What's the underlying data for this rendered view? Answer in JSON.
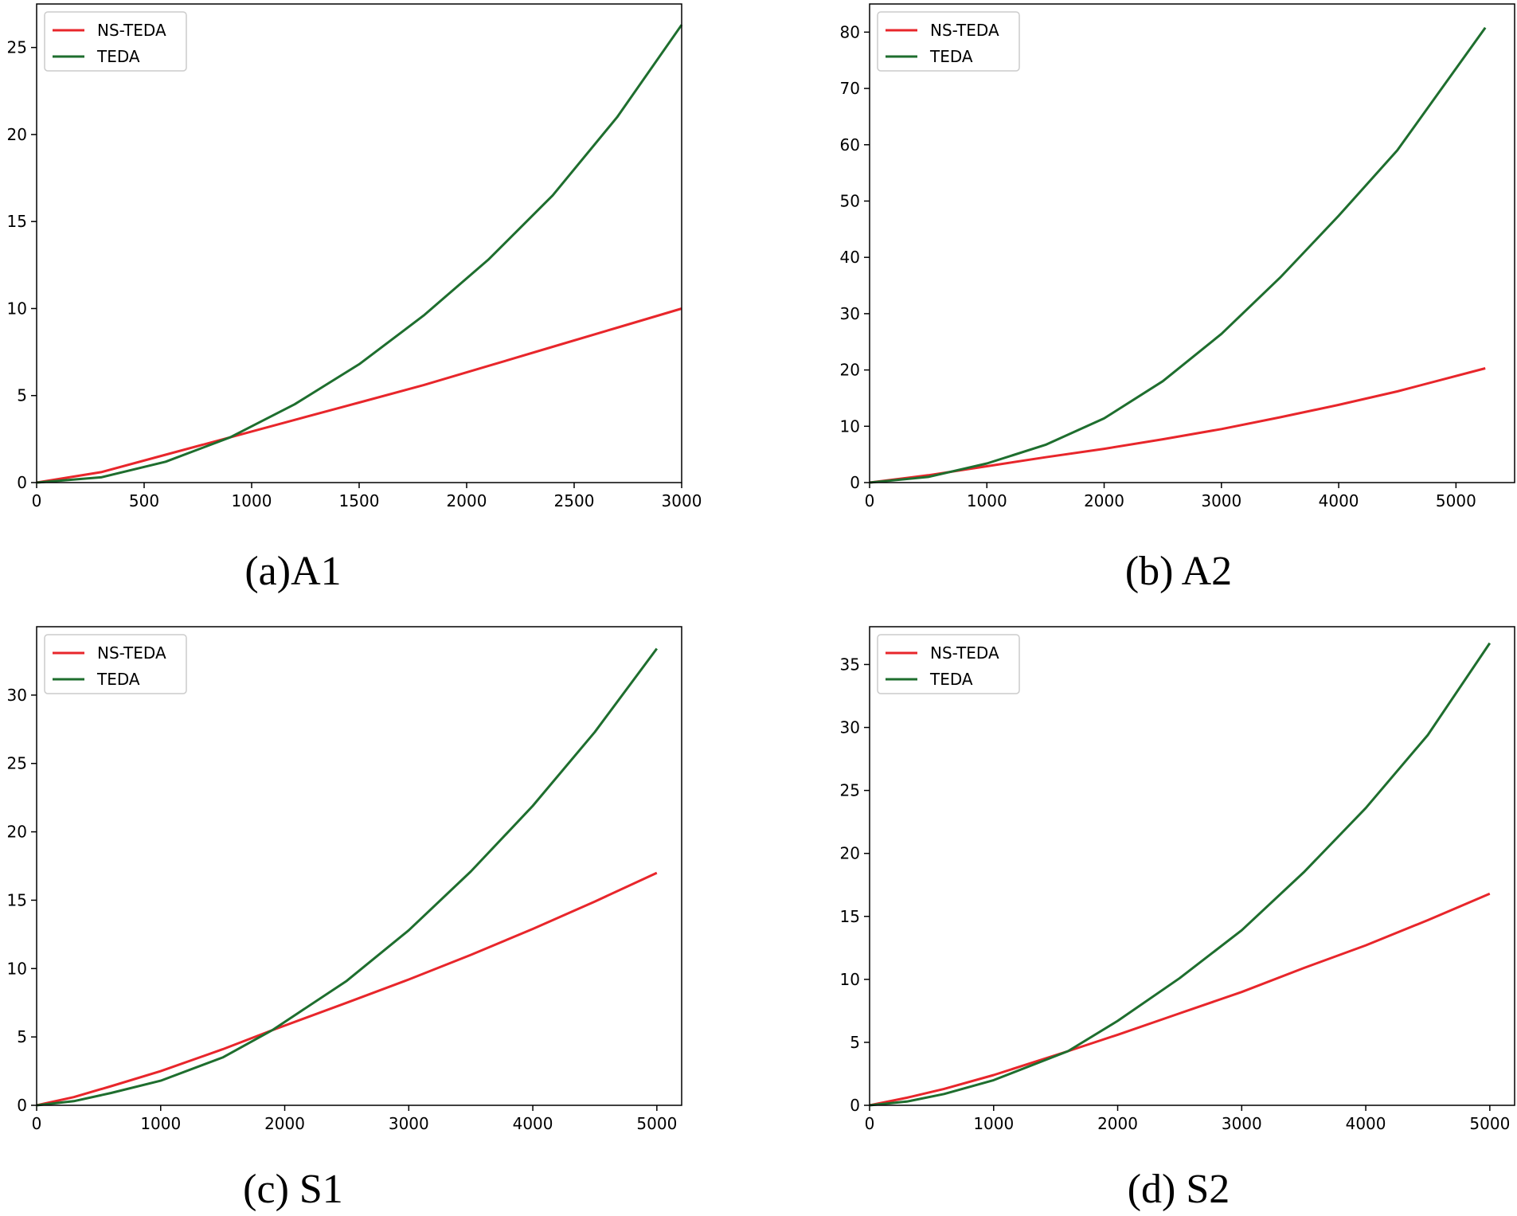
{
  "colors": {
    "ns_teda": "#e8262b",
    "teda": "#1e6e2e"
  },
  "chart_data": [
    {
      "id": "a",
      "type": "line",
      "title": "(a)A1",
      "xlim": [
        0,
        3000
      ],
      "ylim": [
        0,
        27.5
      ],
      "xticks": [
        0,
        500,
        1000,
        1500,
        2000,
        2500,
        3000
      ],
      "yticks": [
        0,
        5,
        10,
        15,
        20,
        25
      ],
      "legend": "top-left",
      "series": [
        {
          "name": "NS-TEDA",
          "x": [
            0,
            300,
            600,
            900,
            1200,
            1500,
            1800,
            2100,
            2400,
            2700,
            3000
          ],
          "y": [
            0,
            0.6,
            1.6,
            2.6,
            3.6,
            4.6,
            5.6,
            6.7,
            7.8,
            8.9,
            10.0
          ]
        },
        {
          "name": "TEDA",
          "x": [
            0,
            300,
            600,
            900,
            1200,
            1500,
            1800,
            2100,
            2400,
            2700,
            3000
          ],
          "y": [
            0,
            0.3,
            1.2,
            2.6,
            4.5,
            6.8,
            9.6,
            12.8,
            16.5,
            21.0,
            26.3
          ]
        }
      ]
    },
    {
      "id": "b",
      "type": "line",
      "title": "(b) A2",
      "xlim": [
        0,
        5500
      ],
      "ylim": [
        0,
        85
      ],
      "xticks": [
        0,
        1000,
        2000,
        3000,
        4000,
        5000
      ],
      "yticks": [
        0,
        10,
        20,
        30,
        40,
        50,
        60,
        70,
        80
      ],
      "legend": "top-left",
      "series": [
        {
          "name": "NS-TEDA",
          "x": [
            0,
            500,
            1000,
            1500,
            2000,
            2500,
            3000,
            3500,
            4000,
            4500,
            5250
          ],
          "y": [
            0,
            1.3,
            2.9,
            4.5,
            6.0,
            7.7,
            9.5,
            11.6,
            13.8,
            16.2,
            20.3
          ]
        },
        {
          "name": "TEDA",
          "x": [
            0,
            500,
            1000,
            1500,
            2000,
            2500,
            3000,
            3500,
            4000,
            4500,
            5250
          ],
          "y": [
            0,
            1.0,
            3.4,
            6.7,
            11.4,
            18.0,
            26.4,
            36.4,
            47.4,
            59.0,
            80.8
          ]
        }
      ]
    },
    {
      "id": "c",
      "type": "line",
      "title": "(c) S1",
      "xlim": [
        0,
        5200
      ],
      "ylim": [
        0,
        35
      ],
      "xticks": [
        0,
        1000,
        2000,
        3000,
        4000,
        5000
      ],
      "yticks": [
        0,
        5,
        10,
        15,
        20,
        25,
        30
      ],
      "legend": "top-left",
      "series": [
        {
          "name": "NS-TEDA",
          "x": [
            0,
            300,
            600,
            1000,
            1500,
            1900,
            2500,
            3000,
            3500,
            4000,
            4500,
            5000
          ],
          "y": [
            0,
            0.6,
            1.4,
            2.5,
            4.1,
            5.5,
            7.5,
            9.2,
            11.0,
            12.9,
            14.9,
            17.0
          ]
        },
        {
          "name": "TEDA",
          "x": [
            0,
            300,
            600,
            1000,
            1500,
            1900,
            2500,
            3000,
            3500,
            4000,
            4500,
            5000
          ],
          "y": [
            0,
            0.3,
            0.9,
            1.8,
            3.5,
            5.5,
            9.1,
            12.8,
            17.1,
            21.9,
            27.3,
            33.4
          ]
        }
      ]
    },
    {
      "id": "d",
      "type": "line",
      "title": "(d) S2",
      "xlim": [
        0,
        5200
      ],
      "ylim": [
        0,
        38
      ],
      "xticks": [
        0,
        1000,
        2000,
        3000,
        4000,
        5000
      ],
      "yticks": [
        0,
        5,
        10,
        15,
        20,
        25,
        30,
        35
      ],
      "legend": "top-left",
      "series": [
        {
          "name": "NS-TEDA",
          "x": [
            0,
            300,
            600,
            1000,
            1600,
            2000,
            2500,
            3000,
            3500,
            4000,
            4500,
            5000
          ],
          "y": [
            0,
            0.6,
            1.3,
            2.4,
            4.3,
            5.6,
            7.3,
            9.0,
            10.9,
            12.7,
            14.7,
            16.8
          ]
        },
        {
          "name": "TEDA",
          "x": [
            0,
            300,
            600,
            1000,
            1600,
            2000,
            2500,
            3000,
            3500,
            4000,
            4500,
            5000
          ],
          "y": [
            0,
            0.3,
            0.9,
            2.0,
            4.3,
            6.7,
            10.1,
            13.9,
            18.5,
            23.6,
            29.4,
            36.7
          ]
        }
      ]
    }
  ]
}
